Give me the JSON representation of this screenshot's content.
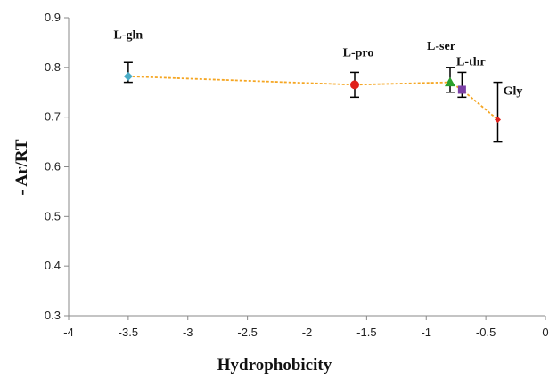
{
  "chart_data": {
    "type": "line",
    "title": "",
    "xlabel": "Hydrophobicity",
    "ylabel": "- Ar/RT",
    "xlim": [
      -4,
      0
    ],
    "ylim": [
      0.3,
      0.9
    ],
    "xticks": [
      -4,
      -3.5,
      -3,
      -2.5,
      -2,
      -1.5,
      -1,
      -0.5,
      0
    ],
    "xtick_labels": [
      "-4",
      "-3.5",
      "-3",
      "-2.5",
      "-2",
      "-1.5",
      "-1",
      "-0.5",
      "0"
    ],
    "yticks": [
      0.3,
      0.4,
      0.5,
      0.6,
      0.7,
      0.8,
      0.9
    ],
    "ytick_labels": [
      "0.3",
      "0.4",
      "0.5",
      "0.6",
      "0.7",
      "0.8",
      "0.9"
    ],
    "grid": false,
    "line_style": "dashed",
    "line_color": "#f5a623",
    "points": [
      {
        "label": "L-gln",
        "x": -3.5,
        "y": 0.782,
        "err_low": 0.77,
        "err_high": 0.81,
        "marker": "diamond",
        "color": "#4bacc6"
      },
      {
        "label": "L-pro",
        "x": -1.6,
        "y": 0.765,
        "err_low": 0.74,
        "err_high": 0.79,
        "marker": "circle",
        "color": "#e0201b"
      },
      {
        "label": "L-ser",
        "x": -0.8,
        "y": 0.77,
        "err_low": 0.75,
        "err_high": 0.8,
        "marker": "triangle",
        "color": "#2ca02c"
      },
      {
        "label": "L-thr",
        "x": -0.7,
        "y": 0.755,
        "err_low": 0.74,
        "err_high": 0.79,
        "marker": "square",
        "color": "#7b3fa6"
      },
      {
        "label": "Gly",
        "x": -0.4,
        "y": 0.695,
        "err_low": 0.65,
        "err_high": 0.77,
        "marker": "diamond",
        "color": "#e0201b"
      }
    ]
  }
}
